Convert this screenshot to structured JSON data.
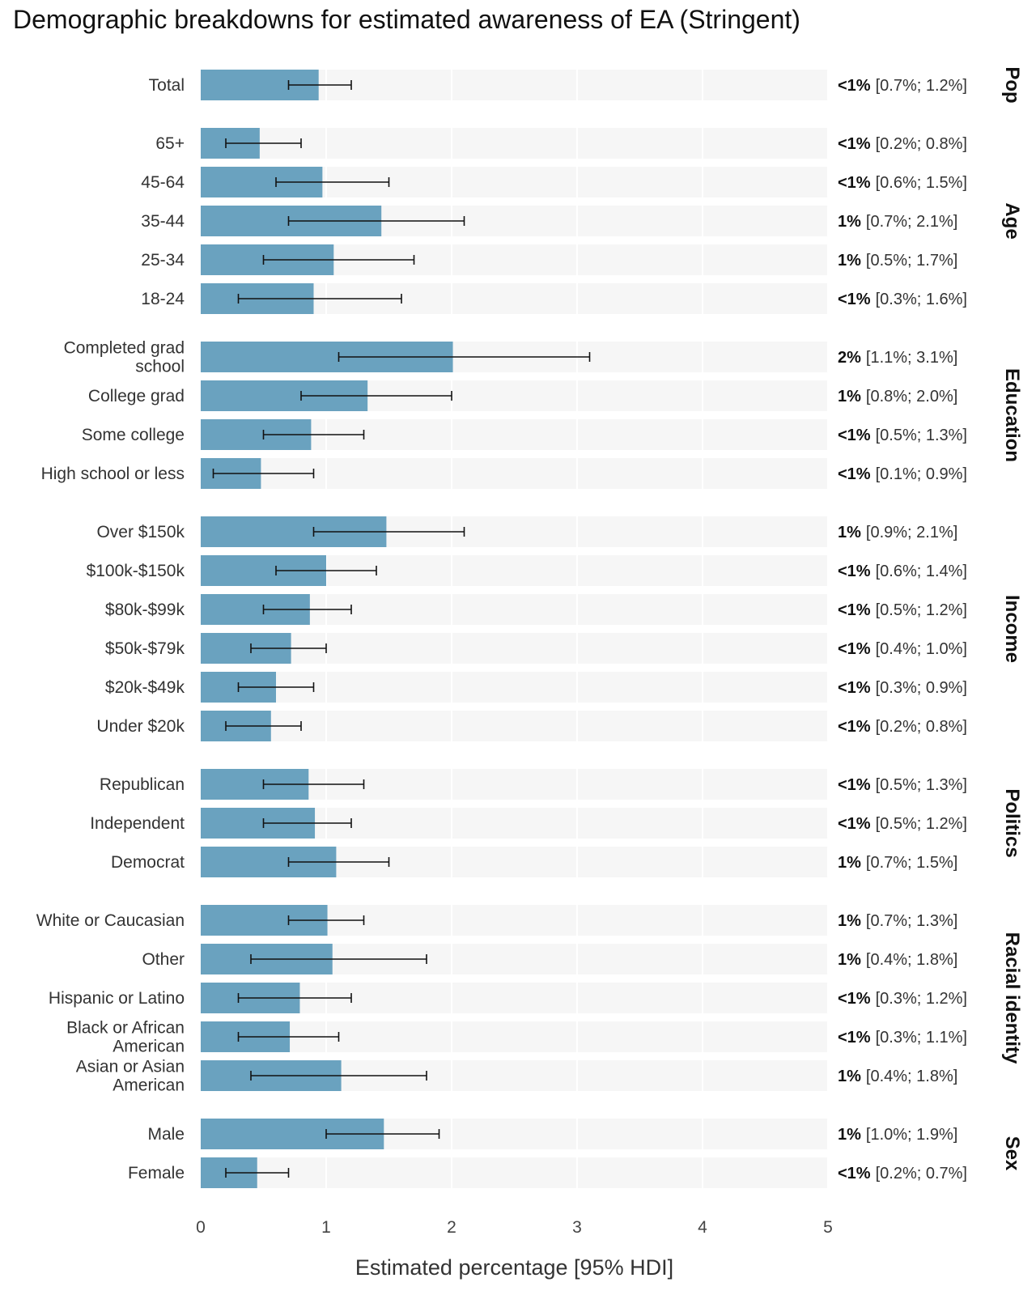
{
  "chart_data": {
    "type": "bar",
    "orientation": "horizontal",
    "title": "Demographic breakdowns for estimated awareness of EA (Stringent)",
    "xlabel": "Estimated percentage [95% HDI]",
    "ylabel": "",
    "xlim": [
      0,
      5
    ],
    "xticks": [
      "0",
      "1",
      "2",
      "3",
      "4",
      "5"
    ],
    "bar_color": "#6aa2bf",
    "panel_color": "#f6f6f6",
    "errorbar_color": "#111111",
    "groups": [
      {
        "name": "Pop",
        "items": [
          {
            "label": [
              "Total"
            ],
            "value": 0.94,
            "lo": 0.7,
            "hi": 1.2,
            "estimate": "<1%",
            "interval": "[0.7%; 1.2%]"
          }
        ]
      },
      {
        "name": "Age",
        "items": [
          {
            "label": [
              "65+"
            ],
            "value": 0.47,
            "lo": 0.2,
            "hi": 0.8,
            "estimate": "<1%",
            "interval": "[0.2%; 0.8%]"
          },
          {
            "label": [
              "45-64"
            ],
            "value": 0.97,
            "lo": 0.6,
            "hi": 1.5,
            "estimate": "<1%",
            "interval": "[0.6%; 1.5%]"
          },
          {
            "label": [
              "35-44"
            ],
            "value": 1.44,
            "lo": 0.7,
            "hi": 2.1,
            "estimate": "1%",
            "interval": "[0.7%; 2.1%]"
          },
          {
            "label": [
              "25-34"
            ],
            "value": 1.06,
            "lo": 0.5,
            "hi": 1.7,
            "estimate": "1%",
            "interval": "[0.5%; 1.7%]"
          },
          {
            "label": [
              "18-24"
            ],
            "value": 0.9,
            "lo": 0.3,
            "hi": 1.6,
            "estimate": "<1%",
            "interval": "[0.3%; 1.6%]"
          }
        ]
      },
      {
        "name": "Education",
        "items": [
          {
            "label": [
              "Completed grad",
              "school"
            ],
            "value": 2.01,
            "lo": 1.1,
            "hi": 3.1,
            "estimate": "2%",
            "interval": "[1.1%; 3.1%]"
          },
          {
            "label": [
              "College grad"
            ],
            "value": 1.33,
            "lo": 0.8,
            "hi": 2.0,
            "estimate": "1%",
            "interval": "[0.8%; 2.0%]"
          },
          {
            "label": [
              "Some college"
            ],
            "value": 0.88,
            "lo": 0.5,
            "hi": 1.3,
            "estimate": "<1%",
            "interval": "[0.5%; 1.3%]"
          },
          {
            "label": [
              "High school or less"
            ],
            "value": 0.48,
            "lo": 0.1,
            "hi": 0.9,
            "estimate": "<1%",
            "interval": "[0.1%; 0.9%]"
          }
        ]
      },
      {
        "name": "Income",
        "items": [
          {
            "label": [
              "Over $150k"
            ],
            "value": 1.48,
            "lo": 0.9,
            "hi": 2.1,
            "estimate": "1%",
            "interval": "[0.9%; 2.1%]"
          },
          {
            "label": [
              "$100k-$150k"
            ],
            "value": 1.0,
            "lo": 0.6,
            "hi": 1.4,
            "estimate": "<1%",
            "interval": "[0.6%; 1.4%]"
          },
          {
            "label": [
              "$80k-$99k"
            ],
            "value": 0.87,
            "lo": 0.5,
            "hi": 1.2,
            "estimate": "<1%",
            "interval": "[0.5%; 1.2%]"
          },
          {
            "label": [
              "$50k-$79k"
            ],
            "value": 0.72,
            "lo": 0.4,
            "hi": 1.0,
            "estimate": "<1%",
            "interval": "[0.4%; 1.0%]"
          },
          {
            "label": [
              "$20k-$49k"
            ],
            "value": 0.6,
            "lo": 0.3,
            "hi": 0.9,
            "estimate": "<1%",
            "interval": "[0.3%; 0.9%]"
          },
          {
            "label": [
              "Under $20k"
            ],
            "value": 0.56,
            "lo": 0.2,
            "hi": 0.8,
            "estimate": "<1%",
            "interval": "[0.2%; 0.8%]"
          }
        ]
      },
      {
        "name": "Politics",
        "items": [
          {
            "label": [
              "Republican"
            ],
            "value": 0.86,
            "lo": 0.5,
            "hi": 1.3,
            "estimate": "<1%",
            "interval": "[0.5%; 1.3%]"
          },
          {
            "label": [
              "Independent"
            ],
            "value": 0.91,
            "lo": 0.5,
            "hi": 1.2,
            "estimate": "<1%",
            "interval": "[0.5%; 1.2%]"
          },
          {
            "label": [
              "Democrat"
            ],
            "value": 1.08,
            "lo": 0.7,
            "hi": 1.5,
            "estimate": "1%",
            "interval": "[0.7%; 1.5%]"
          }
        ]
      },
      {
        "name": "Racial identity",
        "items": [
          {
            "label": [
              "White or Caucasian"
            ],
            "value": 1.01,
            "lo": 0.7,
            "hi": 1.3,
            "estimate": "1%",
            "interval": "[0.7%; 1.3%]"
          },
          {
            "label": [
              "Other"
            ],
            "value": 1.05,
            "lo": 0.4,
            "hi": 1.8,
            "estimate": "1%",
            "interval": "[0.4%; 1.8%]"
          },
          {
            "label": [
              "Hispanic or Latino"
            ],
            "value": 0.79,
            "lo": 0.3,
            "hi": 1.2,
            "estimate": "<1%",
            "interval": "[0.3%; 1.2%]"
          },
          {
            "label": [
              "Black or African",
              "American"
            ],
            "value": 0.71,
            "lo": 0.3,
            "hi": 1.1,
            "estimate": "<1%",
            "interval": "[0.3%; 1.1%]"
          },
          {
            "label": [
              "Asian or Asian",
              "American"
            ],
            "value": 1.12,
            "lo": 0.4,
            "hi": 1.8,
            "estimate": "1%",
            "interval": "[0.4%; 1.8%]"
          }
        ]
      },
      {
        "name": "Sex",
        "items": [
          {
            "label": [
              "Male"
            ],
            "value": 1.46,
            "lo": 1.0,
            "hi": 1.9,
            "estimate": "1%",
            "interval": "[1.0%; 1.9%]"
          },
          {
            "label": [
              "Female"
            ],
            "value": 0.45,
            "lo": 0.2,
            "hi": 0.7,
            "estimate": "<1%",
            "interval": "[0.2%; 0.7%]"
          }
        ]
      }
    ]
  }
}
